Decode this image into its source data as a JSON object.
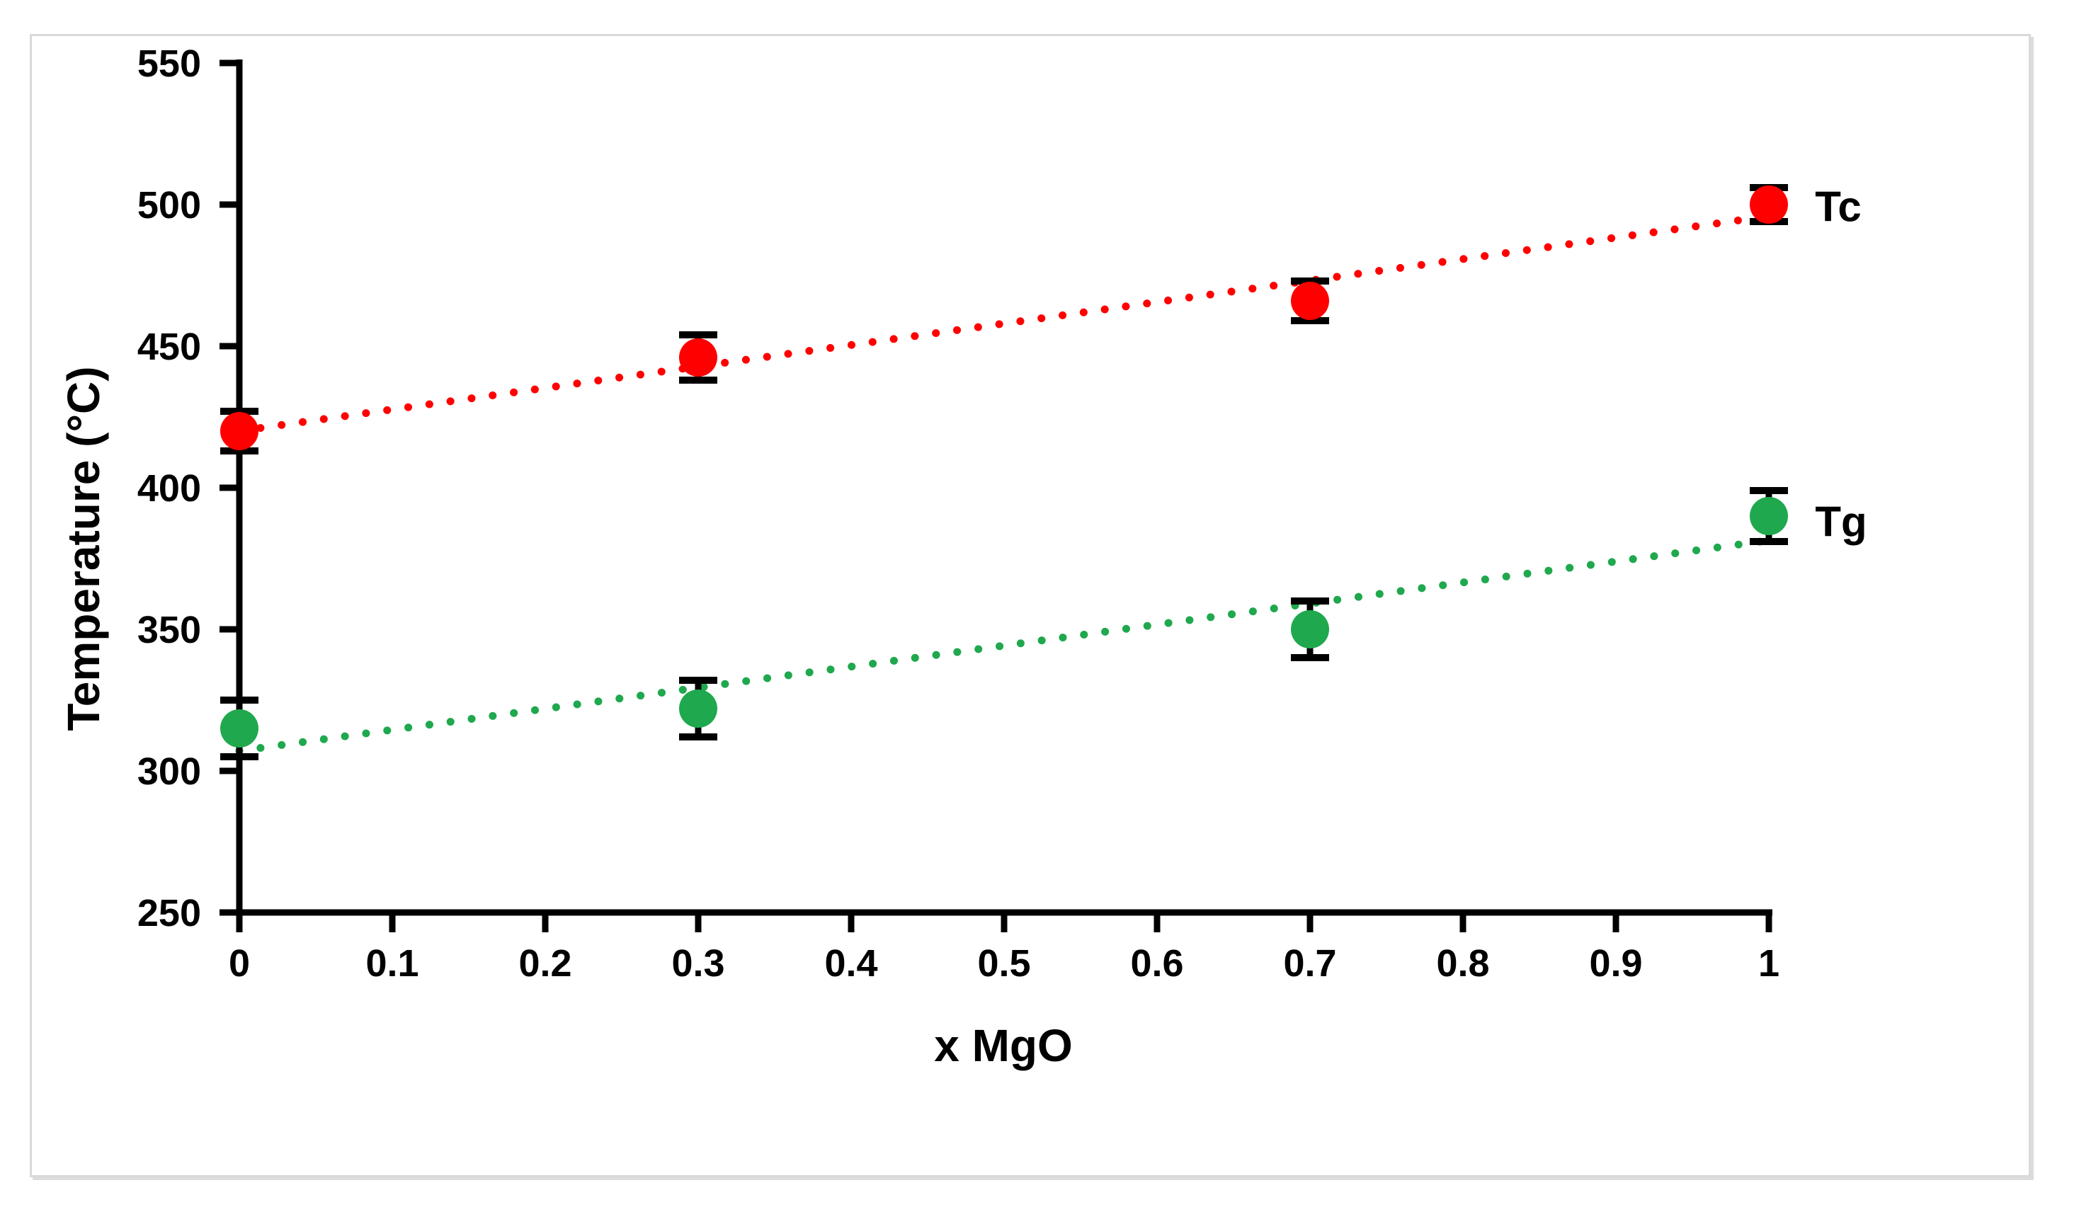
{
  "chart_data": {
    "type": "scatter",
    "title": "",
    "xlabel": "x MgO",
    "ylabel": "Temperature (°C)",
    "xlim": [
      0,
      1
    ],
    "ylim": [
      250,
      550
    ],
    "x_tick_values": [
      0,
      0.1,
      0.2,
      0.3,
      0.4,
      0.5,
      0.6,
      0.7,
      0.8,
      0.9,
      1
    ],
    "x_tick_labels": [
      "0",
      "0.1",
      "0.2",
      "0.3",
      "0.4",
      "0.5",
      "0.6",
      "0.7",
      "0.8",
      "0.9",
      "1"
    ],
    "y_tick_values": [
      250,
      300,
      350,
      400,
      450,
      500,
      550
    ],
    "y_tick_labels": [
      "250",
      "300",
      "350",
      "400",
      "450",
      "500",
      "550"
    ],
    "grid": false,
    "legend_position": "series-labels-right-of-last-point",
    "axis_color": "#000000",
    "error_bar_color": "#000000",
    "frame_border_color": "#d9d9d9",
    "background_color": "#ffffff",
    "series": [
      {
        "name": "Tc",
        "marker": "circle",
        "color": "#ff0000",
        "x": [
          0,
          0.3,
          0.7,
          1
        ],
        "y": [
          420,
          446,
          466,
          500
        ],
        "y_err": [
          7,
          8,
          7,
          6
        ],
        "trendline": "linear-dotted"
      },
      {
        "name": "Tg",
        "marker": "circle",
        "color": "#1fa84d",
        "x": [
          0,
          0.3,
          0.7,
          1
        ],
        "y": [
          315,
          322,
          350,
          390
        ],
        "y_err": [
          10,
          10,
          10,
          9
        ],
        "trendline": "linear-dotted"
      }
    ]
  }
}
